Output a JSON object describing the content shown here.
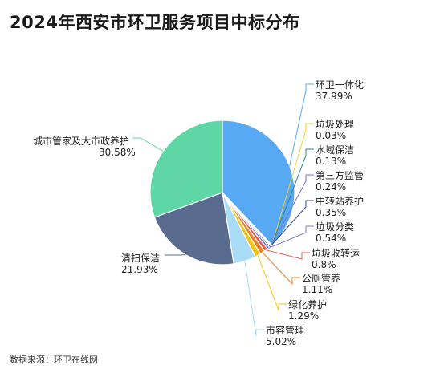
{
  "title": "2024年西安市环卫服务项目中标分布",
  "source": "数据来源：环卫在线网",
  "chart_data": {
    "type": "pie",
    "title": "2024年西安市环卫服务项目中标分布",
    "slices": [
      {
        "name": "环卫一体化",
        "value": 37.99,
        "label": "37.99%",
        "color": "#56a9f2"
      },
      {
        "name": "垃圾处理",
        "value": 0.03,
        "label": "0.03%",
        "color": "#f2cf33"
      },
      {
        "name": "水域保洁",
        "value": 0.13,
        "label": "0.13%",
        "color": "#2d7fa0"
      },
      {
        "name": "第三方监管",
        "value": 0.24,
        "label": "0.24%",
        "color": "#7e6fd1"
      },
      {
        "name": "中转站养护",
        "value": 0.35,
        "label": "0.35%",
        "color": "#344894"
      },
      {
        "name": "垃圾分类",
        "value": 0.54,
        "label": "0.54%",
        "color": "#7a78d9"
      },
      {
        "name": "垃圾收转运",
        "value": 0.8,
        "label": "0.8%",
        "color": "#e8584a"
      },
      {
        "name": "公厕管养",
        "value": 1.11,
        "label": "1.11%",
        "color": "#e8832a"
      },
      {
        "name": "绿化养护",
        "value": 1.29,
        "label": "1.29%",
        "color": "#f2c618"
      },
      {
        "name": "市容管理",
        "value": 5.02,
        "label": "5.02%",
        "color": "#a9dcf7"
      },
      {
        "name": "清扫保洁",
        "value": 21.93,
        "label": "21.93%",
        "color": "#5a6b90"
      },
      {
        "name": "城市管家及大市政养护",
        "value": 30.58,
        "label": "30.58%",
        "color": "#5fd6a6"
      }
    ]
  }
}
